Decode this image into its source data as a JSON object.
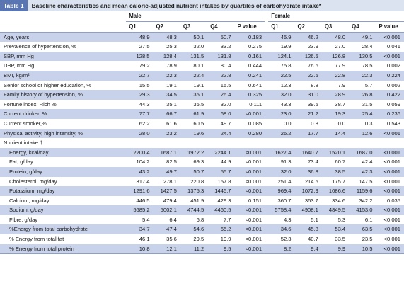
{
  "table_label": "Table 1",
  "table_title": "Baseline characteristics and mean caloric-adjusted nutrient intakes by quartiles of carbohydrate intake*",
  "group_male": "Male",
  "group_female": "Female",
  "columns": [
    "Q1",
    "Q2",
    "Q3",
    "Q4",
    "P value",
    "Q1",
    "Q2",
    "Q3",
    "Q4",
    "P value"
  ],
  "rows": [
    {
      "label": "Age, years",
      "values": [
        "48.9",
        "48.3",
        "50.1",
        "50.7",
        "0.183",
        "45.9",
        "46.2",
        "48.0",
        "49.1",
        "<0.001"
      ]
    },
    {
      "label": "Prevalence of hypertension, %",
      "values": [
        "27.5",
        "25.3",
        "32.0",
        "33.2",
        "0.275",
        "19.9",
        "23.9",
        "27.0",
        "28.4",
        "0.041"
      ]
    },
    {
      "label": "SBP, mm Hg",
      "values": [
        "128.5",
        "128.4",
        "131.5",
        "131.8",
        "0.161",
        "124.1",
        "126.5",
        "126.8",
        "130.5",
        "<0.001"
      ]
    },
    {
      "label": "DBP, mm Hg",
      "values": [
        "79.2",
        "78.9",
        "80.1",
        "80.4",
        "0.444",
        "75.8",
        "76.6",
        "77.9",
        "78.5",
        "0.002"
      ]
    },
    {
      "label": "BMI, kg/m²",
      "values": [
        "22.7",
        "22.3",
        "22.4",
        "22.8",
        "0.241",
        "22.5",
        "22.5",
        "22.8",
        "22.3",
        "0.224"
      ]
    },
    {
      "label": "Senior school or higher education, %",
      "values": [
        "15.5",
        "19.1",
        "19.1",
        "15.5",
        "0.641",
        "12.3",
        "8.8",
        "7.9",
        "5.7",
        "0.002"
      ]
    },
    {
      "label": "Family history of hypertension, %",
      "values": [
        "29.3",
        "34.5",
        "35.1",
        "26.4",
        "0.325",
        "32.0",
        "31.0",
        "28.9",
        "26.8",
        "0.422"
      ]
    },
    {
      "label": "Fortune index, Rich %",
      "values": [
        "44.3",
        "35.1",
        "36.5",
        "32.0",
        "0.111",
        "43.3",
        "39.5",
        "38.7",
        "31.5",
        "0.059"
      ]
    },
    {
      "label": "Current drinker, %",
      "values": [
        "77.7",
        "66.7",
        "61.9",
        "68.0",
        "<0.001",
        "23.0",
        "21.2",
        "19.3",
        "25.4",
        "0.236"
      ]
    },
    {
      "label": "Current smoker,%",
      "values": [
        "62.2",
        "61.6",
        "60.5",
        "49.7",
        "0.085",
        "0.0",
        "0.8",
        "0.0",
        "0.3",
        "0.543"
      ]
    },
    {
      "label": "Physical activity, high intensity, %",
      "values": [
        "28.0",
        "23.2",
        "19.6",
        "24.4",
        "0.280",
        "26.2",
        "17.7",
        "14.4",
        "12.6",
        "<0.001"
      ]
    },
    {
      "label": "Nutrient intake †",
      "values": [
        "",
        "",
        "",
        "",
        "",
        "",
        "",
        "",
        "",
        ""
      ]
    },
    {
      "label": "Energy, kcal/day",
      "values": [
        "2200.4",
        "1687.1",
        "1972.2",
        "2244.1",
        "<0.001",
        "1627.4",
        "1640.7",
        "1520.1",
        "1687.0",
        "<0.001"
      ]
    },
    {
      "label": "Fat, g/day",
      "values": [
        "104.2",
        "82.5",
        "69.3",
        "44.9",
        "<0.001",
        "91.3",
        "73.4",
        "60.7",
        "42.4",
        "<0.001"
      ]
    },
    {
      "label": "Protein, g/day",
      "values": [
        "43.2",
        "49.7",
        "50.7",
        "55.7",
        "<0.001",
        "32.0",
        "36.8",
        "38.5",
        "42.3",
        "<0.001"
      ]
    },
    {
      "label": "Cholesterol, mg/day",
      "values": [
        "317.4",
        "278.1",
        "220.8",
        "157.8",
        "<0.001",
        "251.4",
        "214.5",
        "175.7",
        "147.5",
        "<0.001"
      ]
    },
    {
      "label": "Potassium, mg/day",
      "values": [
        "1291.6",
        "1427.5",
        "1375.3",
        "1445.7",
        "<0.001",
        "969.4",
        "1072.9",
        "1086.6",
        "1159.6",
        "<0.001"
      ]
    },
    {
      "label": "Calcium, mg/day",
      "values": [
        "446.5",
        "479.4",
        "451.9",
        "429.3",
        "0.151",
        "360.7",
        "363.7",
        "334.6",
        "342.2",
        "0.035"
      ]
    },
    {
      "label": "Sodium, g/day",
      "values": [
        "5685.2",
        "5002.1",
        "4744.5",
        "4460.5",
        "<0.001",
        "5758.4",
        "4908.1",
        "4849.5",
        "4153.0",
        "<0.001"
      ]
    },
    {
      "label": "Fibre, g/day",
      "values": [
        "5.4",
        "6.4",
        "6.8",
        "7.7",
        "<0.001",
        "4.3",
        "5.1",
        "5.3",
        "6.1",
        "<0.001"
      ]
    },
    {
      "label": "%Energy from total carbohydrate",
      "values": [
        "34.7",
        "47.4",
        "54.6",
        "65.2",
        "<0.001",
        "34.6",
        "45.8",
        "53.4",
        "63.5",
        "<0.001"
      ]
    },
    {
      "label": "% Energy from total fat",
      "values": [
        "46.1",
        "35.6",
        "29.5",
        "19.9",
        "<0.001",
        "52.3",
        "40.7",
        "33.5",
        "23.5",
        "<0.001"
      ]
    },
    {
      "label": "% Energy from total protein",
      "values": [
        "10.8",
        "12.1",
        "11.2",
        "9.5",
        "<0.001",
        "8.2",
        "9.4",
        "9.9",
        "10.5",
        "<0.001"
      ]
    }
  ],
  "colors": {
    "band": "#c8d2ea",
    "title_bar": "#dbe3f0",
    "label_bg": "#5a76b2"
  }
}
